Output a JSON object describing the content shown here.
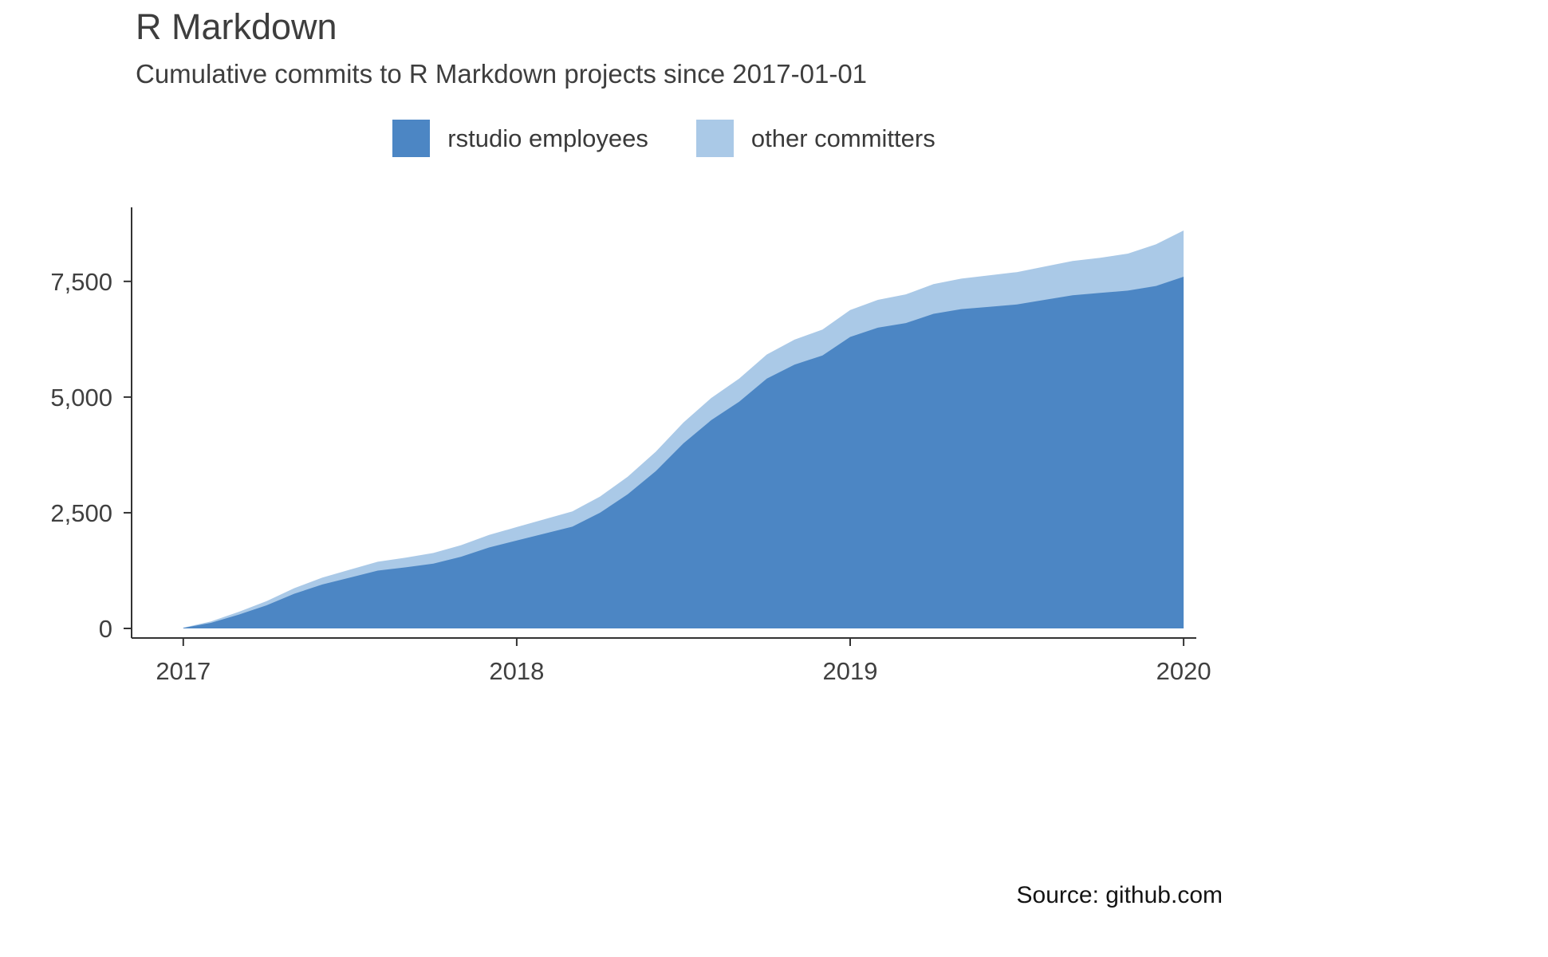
{
  "header": {
    "title": "R Markdown",
    "subtitle": "Cumulative commits to R Markdown projects since 2017-01-01"
  },
  "footer": {
    "source": "Source: github.com"
  },
  "chart_data": {
    "type": "area",
    "stacked": true,
    "title": "R Markdown",
    "subtitle": "Cumulative commits to R Markdown projects since 2017-01-01",
    "xlabel": "",
    "ylabel": "",
    "xlim": [
      2016.845,
      2020.038
    ],
    "ylim": [
      0,
      9100
    ],
    "xticks": [
      2017,
      2018,
      2019,
      2020
    ],
    "xtick_labels": [
      "2017",
      "2018",
      "2019",
      "2020"
    ],
    "yticks": [
      0,
      2500,
      5000,
      7500
    ],
    "ytick_labels": [
      "0",
      "2,500",
      "5,000",
      "7,500"
    ],
    "grid": false,
    "legend_position": "top-center",
    "axis_color": "#333333",
    "text_color": "#404040",
    "x": [
      2017.0,
      2017.083,
      2017.167,
      2017.25,
      2017.333,
      2017.417,
      2017.5,
      2017.583,
      2017.667,
      2017.75,
      2017.833,
      2017.917,
      2018.0,
      2018.083,
      2018.167,
      2018.25,
      2018.333,
      2018.417,
      2018.5,
      2018.583,
      2018.667,
      2018.75,
      2018.833,
      2018.917,
      2019.0,
      2019.083,
      2019.167,
      2019.25,
      2019.333,
      2019.417,
      2019.5,
      2019.583,
      2019.667,
      2019.75,
      2019.833,
      2019.917,
      2020.0
    ],
    "series": [
      {
        "name": "rstudio employees",
        "color": "#4c86c4",
        "values": [
          10,
          120,
          300,
          500,
          750,
          950,
          1100,
          1250,
          1320,
          1400,
          1550,
          1750,
          1900,
          2050,
          2200,
          2500,
          2900,
          3400,
          4000,
          4500,
          4900,
          5400,
          5700,
          5900,
          6300,
          6500,
          6600,
          6800,
          6900,
          6950,
          7000,
          7100,
          7200,
          7250,
          7300,
          7400,
          7600
        ]
      },
      {
        "name": "other committers",
        "color": "#aac9e7",
        "values": [
          5,
          30,
          60,
          90,
          120,
          150,
          170,
          190,
          210,
          230,
          250,
          270,
          290,
          310,
          330,
          350,
          380,
          420,
          450,
          480,
          500,
          520,
          540,
          560,
          580,
          600,
          620,
          640,
          660,
          680,
          700,
          720,
          740,
          760,
          800,
          900,
          1000
        ]
      }
    ]
  }
}
